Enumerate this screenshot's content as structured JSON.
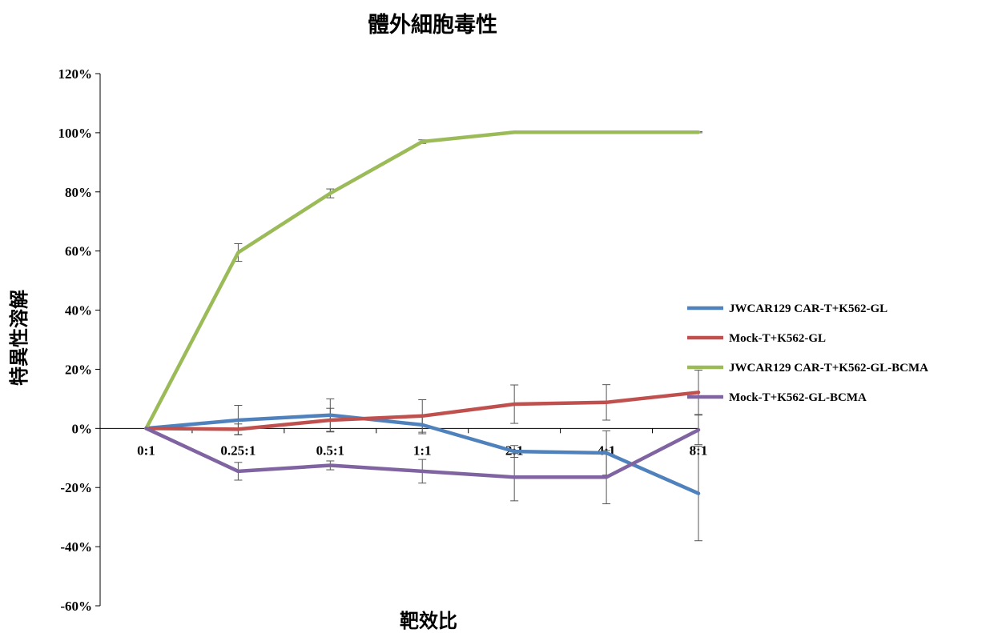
{
  "chart_data": {
    "type": "line",
    "title": "體外細胞毒性",
    "xlabel": "靶效比",
    "ylabel": "特異性溶解",
    "categories": [
      "0:1",
      "0.25:1",
      "0.5:1",
      "1:1",
      "2:1",
      "4:1",
      "8:1"
    ],
    "ylim": [
      -60,
      120
    ],
    "yticks": [
      -60,
      -40,
      -20,
      0,
      20,
      40,
      60,
      80,
      100,
      120
    ],
    "ytick_labels": [
      "-60%",
      "-40%",
      "-20%",
      "0%",
      "20%",
      "40%",
      "60%",
      "80%",
      "100%",
      "120%"
    ],
    "grid": false,
    "legend_position": "right",
    "series": [
      {
        "name": "JWCAR129 CAR-T+K562-GL",
        "color": "#4f81bd",
        "values": [
          0,
          2.8,
          4.5,
          1.2,
          -7.8,
          -8.3,
          -22
        ],
        "errors": [
          0,
          5,
          5.5,
          3,
          2,
          7.5,
          16
        ]
      },
      {
        "name": "Mock-T+K562-GL",
        "color": "#c0504d",
        "values": [
          0,
          -0.3,
          2.8,
          4.2,
          8.2,
          8.8,
          12.2
        ],
        "errors": [
          0,
          1.8,
          4,
          5.5,
          6.5,
          6,
          7.5
        ]
      },
      {
        "name": "JWCAR129 CAR-T+K562-GL-BCMA",
        "color": "#9bbb59",
        "values": [
          0,
          59.5,
          79.5,
          97,
          100.2,
          100.2,
          100.2
        ],
        "errors": [
          0,
          3,
          1.5,
          0.6,
          0.2,
          0.2,
          0.2
        ]
      },
      {
        "name": "Mock-T+K562-GL-BCMA",
        "color": "#8064a2",
        "values": [
          0,
          -14.5,
          -12.5,
          -14.5,
          -16.5,
          -16.5,
          -0.5
        ],
        "errors": [
          0,
          3,
          1.5,
          4,
          8,
          9,
          5
        ]
      }
    ]
  }
}
